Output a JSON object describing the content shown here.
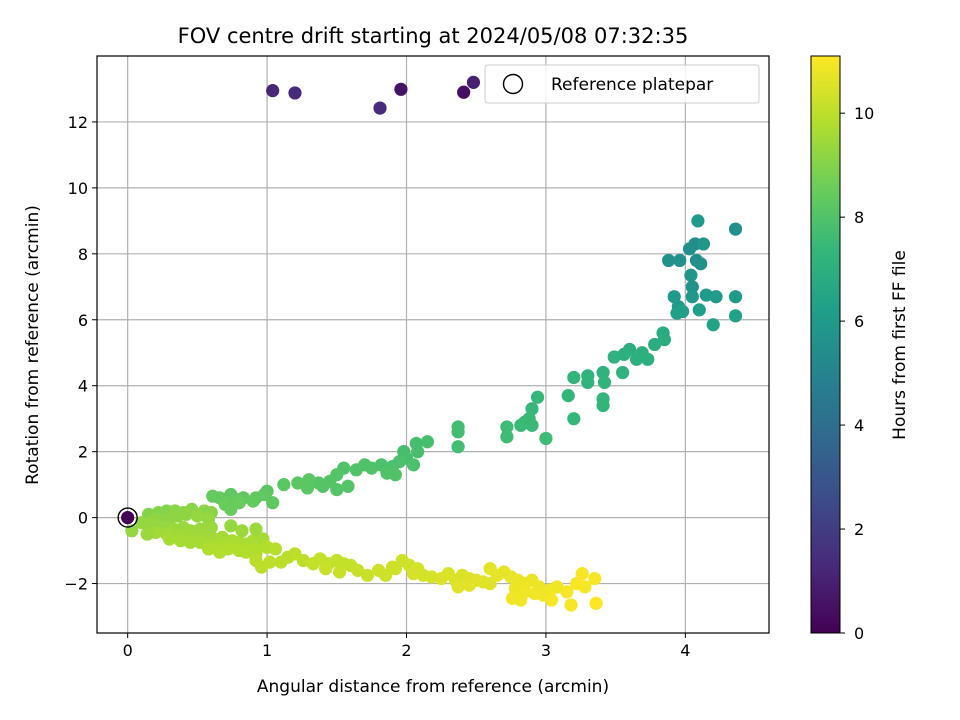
{
  "chart_data": {
    "type": "scatter",
    "title": "FOV centre drift starting at 2024/05/08 07:32:35",
    "xlabel": "Angular distance from reference (arcmin)",
    "ylabel": "Rotation from reference (arcmin)",
    "xlim": [
      -0.22,
      4.6
    ],
    "ylim": [
      -3.5,
      14.0
    ],
    "xticks": [
      0,
      1,
      2,
      3,
      4
    ],
    "yticks": [
      -2,
      0,
      2,
      4,
      6,
      8,
      10,
      12
    ],
    "ytick_labels": [
      "−2",
      "0",
      "2",
      "4",
      "6",
      "8",
      "10",
      "12"
    ],
    "grid": true,
    "legend": {
      "location": "top-right",
      "entries": [
        "Reference platepar"
      ]
    },
    "reference_point": {
      "x": 0,
      "y": 0
    },
    "colorbar": {
      "label": "Hours from first FF file",
      "range": [
        0,
        11.1
      ],
      "ticks": [
        0,
        2,
        4,
        6,
        8,
        10
      ],
      "colormap": "viridis",
      "colors": [
        "#440154",
        "#482878",
        "#3e4989",
        "#31688e",
        "#26828e",
        "#1f9e89",
        "#35b779",
        "#6ece58",
        "#b5de2b",
        "#fde725"
      ]
    },
    "series": [
      {
        "points": [
          [
            0.0,
            0.0,
            0.05
          ],
          [
            1.04,
            12.95,
            1.2
          ],
          [
            1.2,
            12.88,
            1.3
          ],
          [
            1.81,
            12.42,
            1.4
          ],
          [
            1.96,
            12.99,
            0.6
          ],
          [
            2.41,
            12.9,
            0.4
          ],
          [
            2.48,
            13.2,
            1.0
          ],
          [
            4.09,
            9.0,
            6.0
          ],
          [
            4.36,
            8.75,
            5.5
          ],
          [
            4.03,
            8.15,
            5.5
          ],
          [
            4.07,
            8.3,
            5.4
          ],
          [
            4.13,
            8.3,
            5.8
          ],
          [
            3.88,
            7.8,
            5.6
          ],
          [
            3.96,
            7.8,
            5.7
          ],
          [
            4.08,
            7.8,
            5.5
          ],
          [
            4.11,
            7.7,
            5.6
          ],
          [
            4.04,
            7.35,
            5.8
          ],
          [
            4.05,
            7.0,
            5.7
          ],
          [
            4.05,
            6.7,
            5.9
          ],
          [
            3.92,
            6.7,
            6.0
          ],
          [
            4.15,
            6.75,
            6.0
          ],
          [
            4.22,
            6.7,
            6.0
          ],
          [
            4.36,
            6.7,
            6.1
          ],
          [
            3.95,
            6.4,
            6.1
          ],
          [
            3.98,
            6.25,
            6.2
          ],
          [
            3.94,
            6.2,
            6.2
          ],
          [
            4.1,
            6.3,
            6.2
          ],
          [
            4.36,
            6.12,
            6.3
          ],
          [
            4.2,
            5.85,
            6.4
          ],
          [
            3.84,
            5.6,
            6.8
          ],
          [
            3.85,
            5.4,
            6.8
          ],
          [
            3.78,
            5.25,
            6.9
          ],
          [
            3.69,
            5.0,
            7.0
          ],
          [
            3.73,
            4.8,
            7.0
          ],
          [
            3.65,
            4.8,
            7.0
          ],
          [
            3.6,
            5.1,
            6.9
          ],
          [
            3.56,
            4.95,
            7.0
          ],
          [
            3.49,
            4.87,
            7.1
          ],
          [
            3.55,
            4.4,
            7.1
          ],
          [
            3.41,
            4.4,
            7.1
          ],
          [
            3.42,
            4.1,
            7.2
          ],
          [
            3.3,
            4.3,
            7.2
          ],
          [
            3.2,
            4.25,
            7.3
          ],
          [
            3.3,
            4.1,
            7.2
          ],
          [
            3.41,
            3.6,
            7.3
          ],
          [
            3.41,
            3.4,
            7.3
          ],
          [
            3.16,
            3.7,
            7.3
          ],
          [
            3.2,
            3.0,
            7.4
          ],
          [
            2.9,
            3.3,
            7.4
          ],
          [
            2.94,
            3.65,
            7.4
          ],
          [
            2.88,
            3.0,
            7.5
          ],
          [
            2.85,
            2.9,
            7.5
          ],
          [
            2.82,
            2.8,
            7.5
          ],
          [
            2.9,
            2.8,
            7.5
          ],
          [
            3.0,
            2.4,
            7.6
          ],
          [
            2.72,
            2.75,
            7.6
          ],
          [
            2.72,
            2.45,
            7.6
          ],
          [
            2.37,
            2.75,
            7.7
          ],
          [
            2.37,
            2.6,
            7.7
          ],
          [
            2.37,
            2.15,
            7.7
          ],
          [
            2.15,
            2.3,
            7.8
          ],
          [
            2.07,
            2.25,
            7.8
          ],
          [
            2.08,
            2.0,
            7.8
          ],
          [
            1.98,
            2.0,
            7.8
          ],
          [
            2.0,
            1.8,
            7.8
          ],
          [
            1.95,
            1.7,
            7.9
          ],
          [
            1.9,
            1.55,
            7.9
          ],
          [
            2.05,
            1.6,
            7.9
          ],
          [
            1.82,
            1.6,
            7.9
          ],
          [
            1.7,
            1.6,
            8.0
          ],
          [
            1.64,
            1.45,
            8.0
          ],
          [
            1.55,
            1.5,
            8.0
          ],
          [
            1.75,
            1.5,
            8.0
          ],
          [
            1.86,
            1.35,
            8.0
          ],
          [
            1.92,
            1.3,
            8.0
          ],
          [
            1.5,
            1.3,
            8.1
          ],
          [
            1.45,
            1.1,
            8.1
          ],
          [
            1.4,
            0.95,
            8.1
          ],
          [
            1.5,
            0.85,
            8.1
          ],
          [
            1.58,
            0.95,
            8.1
          ],
          [
            1.37,
            1.05,
            8.1
          ],
          [
            1.3,
            1.15,
            8.2
          ],
          [
            1.22,
            1.05,
            8.2
          ],
          [
            1.29,
            0.9,
            8.2
          ],
          [
            1.12,
            1.0,
            8.2
          ],
          [
            1.0,
            0.8,
            8.2
          ],
          [
            0.98,
            0.7,
            8.3
          ],
          [
            0.92,
            0.6,
            8.3
          ],
          [
            0.83,
            0.6,
            8.3
          ],
          [
            0.74,
            0.7,
            8.3
          ],
          [
            0.78,
            0.55,
            8.4
          ],
          [
            0.66,
            0.6,
            8.4
          ],
          [
            0.61,
            0.65,
            8.4
          ],
          [
            0.7,
            0.4,
            8.5
          ],
          [
            0.74,
            0.25,
            8.5
          ],
          [
            0.8,
            0.45,
            8.5
          ],
          [
            0.9,
            0.5,
            8.4
          ],
          [
            1.04,
            0.45,
            8.3
          ],
          [
            0.15,
            0.1,
            9.0
          ],
          [
            0.22,
            0.15,
            9.0
          ],
          [
            0.28,
            0.2,
            9.0
          ],
          [
            0.34,
            0.2,
            9.1
          ],
          [
            0.4,
            0.15,
            9.1
          ],
          [
            0.46,
            0.25,
            9.1
          ],
          [
            0.55,
            0.2,
            9.1
          ],
          [
            0.6,
            0.15,
            9.1
          ],
          [
            0.19,
            -0.05,
            9.2
          ],
          [
            0.25,
            -0.1,
            9.2
          ],
          [
            0.3,
            -0.05,
            9.2
          ],
          [
            0.36,
            0.05,
            9.2
          ],
          [
            0.42,
            0.1,
            9.2
          ],
          [
            0.5,
            0.05,
            9.3
          ],
          [
            0.58,
            -0.05,
            9.3
          ],
          [
            0.1,
            -0.15,
            9.3
          ],
          [
            0.15,
            -0.2,
            9.3
          ],
          [
            0.2,
            -0.25,
            9.3
          ],
          [
            0.27,
            -0.3,
            9.3
          ],
          [
            0.33,
            -0.35,
            9.4
          ],
          [
            0.4,
            -0.3,
            9.4
          ],
          [
            0.45,
            -0.4,
            9.4
          ],
          [
            0.52,
            -0.35,
            9.4
          ],
          [
            0.6,
            -0.3,
            9.4
          ],
          [
            0.2,
            -0.45,
            9.5
          ],
          [
            0.28,
            -0.5,
            9.5
          ],
          [
            0.35,
            -0.55,
            9.5
          ],
          [
            0.42,
            -0.6,
            9.5
          ],
          [
            0.48,
            -0.55,
            9.5
          ],
          [
            0.55,
            -0.6,
            9.5
          ],
          [
            0.62,
            -0.65,
            9.5
          ],
          [
            0.68,
            -0.6,
            9.6
          ],
          [
            0.3,
            -0.65,
            9.6
          ],
          [
            0.38,
            -0.7,
            9.6
          ],
          [
            0.45,
            -0.75,
            9.6
          ],
          [
            0.52,
            -0.75,
            9.6
          ],
          [
            0.57,
            -0.8,
            9.6
          ],
          [
            0.64,
            -0.85,
            9.7
          ],
          [
            0.7,
            -0.85,
            9.7
          ],
          [
            0.75,
            -0.7,
            9.7
          ],
          [
            0.8,
            -0.75,
            9.7
          ],
          [
            0.85,
            -0.8,
            9.7
          ],
          [
            0.9,
            -0.7,
            9.7
          ],
          [
            0.95,
            -0.85,
            9.8
          ],
          [
            0.72,
            -0.95,
            9.8
          ],
          [
            0.8,
            -1.0,
            9.8
          ],
          [
            0.88,
            -1.0,
            9.8
          ],
          [
            0.66,
            -1.05,
            9.8
          ],
          [
            0.58,
            -0.95,
            9.8
          ],
          [
            0.85,
            -1.05,
            9.8
          ],
          [
            0.92,
            -1.1,
            9.8
          ],
          [
            0.74,
            -0.25,
            9.3
          ],
          [
            0.82,
            -0.4,
            9.4
          ],
          [
            0.92,
            -0.35,
            9.4
          ],
          [
            0.03,
            -0.4,
            9.3
          ],
          [
            0.14,
            -0.5,
            9.4
          ],
          [
            0.97,
            -0.65,
            9.6
          ],
          [
            1.0,
            -0.9,
            9.8
          ],
          [
            1.06,
            -0.95,
            9.9
          ],
          [
            1.15,
            -1.2,
            9.9
          ],
          [
            0.92,
            -1.3,
            9.9
          ],
          [
            1.02,
            -1.35,
            10.0
          ],
          [
            0.96,
            -1.5,
            10.0
          ],
          [
            1.1,
            -1.35,
            10.0
          ],
          [
            1.2,
            -1.1,
            10.0
          ],
          [
            1.26,
            -1.3,
            10.0
          ],
          [
            1.33,
            -1.4,
            10.1
          ],
          [
            1.38,
            -1.25,
            10.1
          ],
          [
            1.44,
            -1.4,
            10.1
          ],
          [
            1.5,
            -1.3,
            10.1
          ],
          [
            1.55,
            -1.4,
            10.1
          ],
          [
            1.6,
            -1.45,
            10.1
          ],
          [
            1.42,
            -1.55,
            10.2
          ],
          [
            1.52,
            -1.65,
            10.2
          ],
          [
            1.65,
            -1.6,
            10.2
          ],
          [
            1.72,
            -1.75,
            10.2
          ],
          [
            1.8,
            -1.6,
            10.3
          ],
          [
            1.85,
            -1.75,
            10.3
          ],
          [
            1.9,
            -1.5,
            10.3
          ],
          [
            1.97,
            -1.3,
            10.3
          ],
          [
            2.02,
            -1.45,
            10.3
          ],
          [
            2.08,
            -1.55,
            10.4
          ],
          [
            2.12,
            -1.75,
            10.4
          ],
          [
            2.05,
            -1.7,
            10.4
          ],
          [
            1.92,
            -1.55,
            10.3
          ],
          [
            2.18,
            -1.8,
            10.4
          ],
          [
            2.25,
            -1.85,
            10.5
          ],
          [
            2.3,
            -1.7,
            10.5
          ],
          [
            2.35,
            -1.9,
            10.5
          ],
          [
            2.4,
            -1.75,
            10.5
          ],
          [
            2.45,
            -1.85,
            10.5
          ],
          [
            2.5,
            -1.9,
            10.6
          ],
          [
            2.37,
            -2.1,
            10.6
          ],
          [
            2.45,
            -2.05,
            10.6
          ],
          [
            2.55,
            -1.95,
            10.6
          ],
          [
            2.6,
            -2.0,
            10.6
          ],
          [
            2.65,
            -1.75,
            10.7
          ],
          [
            2.6,
            -1.55,
            10.7
          ],
          [
            2.7,
            -1.65,
            10.7
          ],
          [
            2.75,
            -1.8,
            10.7
          ],
          [
            2.8,
            -1.9,
            10.8
          ],
          [
            2.85,
            -2.0,
            10.8
          ],
          [
            2.9,
            -1.9,
            10.8
          ],
          [
            2.95,
            -2.1,
            10.8
          ],
          [
            2.78,
            -2.15,
            10.8
          ],
          [
            2.85,
            -2.25,
            10.9
          ],
          [
            2.92,
            -2.3,
            10.9
          ],
          [
            2.98,
            -2.35,
            10.9
          ],
          [
            3.03,
            -2.2,
            10.9
          ],
          [
            3.08,
            -2.1,
            10.9
          ],
          [
            3.15,
            -2.25,
            11.0
          ],
          [
            3.22,
            -2.0,
            11.0
          ],
          [
            3.28,
            -2.1,
            11.0
          ],
          [
            3.35,
            -1.85,
            11.0
          ],
          [
            3.26,
            -1.7,
            11.0
          ],
          [
            2.76,
            -2.45,
            10.9
          ],
          [
            2.82,
            -2.5,
            10.9
          ],
          [
            3.04,
            -2.5,
            11.0
          ],
          [
            3.18,
            -2.65,
            11.0
          ],
          [
            3.36,
            -2.6,
            11.1
          ]
        ]
      }
    ]
  }
}
